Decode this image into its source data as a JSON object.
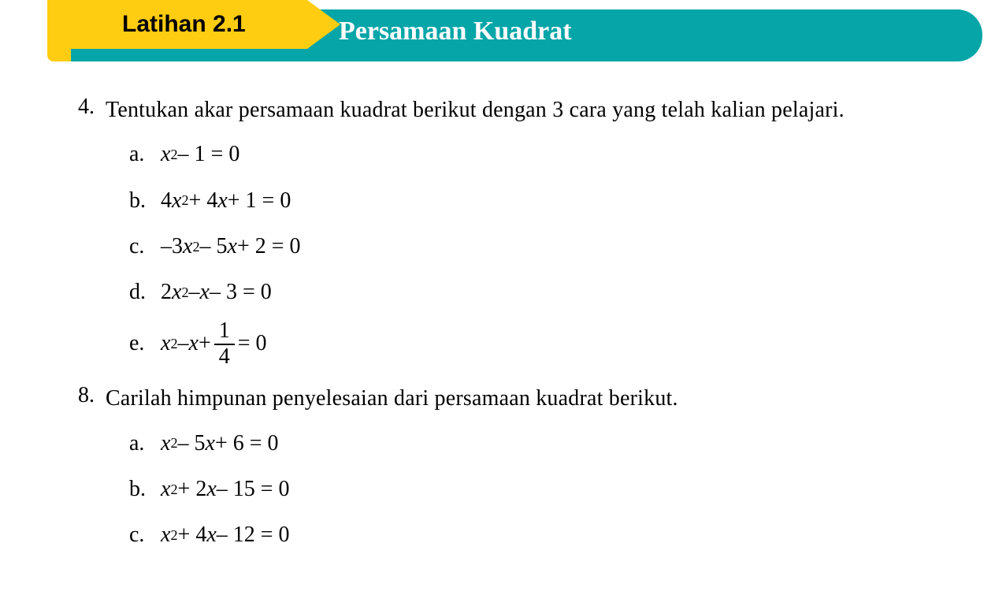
{
  "header": {
    "label": "Latihan 2.1",
    "title": "Persamaan Kuadrat",
    "colors": {
      "teal": "#05a5a8",
      "yellow": "#fecd12",
      "title_text": "#ffffff",
      "label_text": "#000000"
    }
  },
  "problems": [
    {
      "number": "4.",
      "instruction": "Tentukan akar persamaan kuadrat berikut dengan 3 cara yang telah kalian pelajari.",
      "items": [
        {
          "letter": "a.",
          "var_prefix": "x",
          "sup": "2",
          "rest": " – 1 = 0"
        },
        {
          "letter": "b.",
          "var_prefix": "4x",
          "sup": "2",
          "rest": " + 4x + 1 = 0",
          "mixed": true,
          "parts": [
            " + 4",
            "x",
            " + 1 = 0"
          ]
        },
        {
          "letter": "c.",
          "var_prefix": "–3x",
          "sup": "2",
          "rest": " – 5x + 2 = 0",
          "mixed": true,
          "parts": [
            " – 5",
            "x",
            " + 2 = 0"
          ]
        },
        {
          "letter": "d.",
          "var_prefix": "2x",
          "sup": "2",
          "rest": " – x – 3 = 0",
          "mixed": true,
          "parts": [
            " – ",
            "x",
            " – 3 = 0"
          ]
        },
        {
          "letter": "e.",
          "var_prefix": "x",
          "sup": "2",
          "frac": {
            "before_parts": [
              " – ",
              "x",
              " + "
            ],
            "num": "1",
            "den": "4",
            "after": "  = 0"
          }
        }
      ]
    },
    {
      "number": "8.",
      "instruction": "Carilah himpunan penyelesaian dari persamaan kuadrat berikut.",
      "items": [
        {
          "letter": "a.",
          "var_prefix": "x",
          "sup": "2",
          "rest": " – 5x + 6 = 0",
          "mixed": true,
          "parts": [
            " – 5",
            "x",
            " + 6 = 0"
          ]
        },
        {
          "letter": "b.",
          "var_prefix": "x",
          "sup": "2",
          "rest": " + 2x  – 15 = 0",
          "mixed": true,
          "parts": [
            " + 2",
            "x",
            "  – 15 = 0"
          ]
        },
        {
          "letter": "c.",
          "var_prefix": "x",
          "sup": "2",
          "rest": " + 4x  – 12 = 0",
          "mixed": true,
          "parts": [
            " + 4",
            "x",
            "  – 12 = 0"
          ]
        }
      ]
    }
  ]
}
